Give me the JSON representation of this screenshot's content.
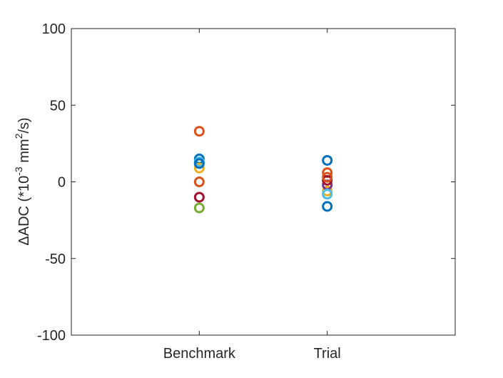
{
  "chart_data": {
    "type": "scatter",
    "title": "",
    "ylabel": {
      "prefix": "ΔADC (*10",
      "exp1": "-3",
      "mid": " mm",
      "exp2": "2",
      "suffix": "/s)"
    },
    "xlabel": "",
    "categories": [
      "Benchmark",
      "Trial"
    ],
    "ylim": [
      -100,
      100
    ],
    "yticks": [
      100,
      50,
      0,
      -50,
      -100
    ],
    "ytick_labels": [
      "100",
      "50",
      "0",
      "-50",
      "-100"
    ],
    "grid": false,
    "series": [
      {
        "color": "#0072BD",
        "values": [
          15,
          14
        ]
      },
      {
        "color": "#D95319",
        "values": [
          33,
          6
        ]
      },
      {
        "color": "#EDB120",
        "values": [
          9,
          -6
        ]
      },
      {
        "color": "#7E2F8E",
        "values": [
          12,
          -2
        ]
      },
      {
        "color": "#77AC30",
        "values": [
          -17,
          -8
        ]
      },
      {
        "color": "#4DBEEE",
        "values": [
          13,
          -8
        ]
      },
      {
        "color": "#A2142F",
        "values": [
          -10,
          1
        ]
      },
      {
        "color": "#D95319",
        "values": [
          0,
          3
        ]
      },
      {
        "color": "#0072BD",
        "values": [
          12,
          -16
        ]
      }
    ]
  }
}
